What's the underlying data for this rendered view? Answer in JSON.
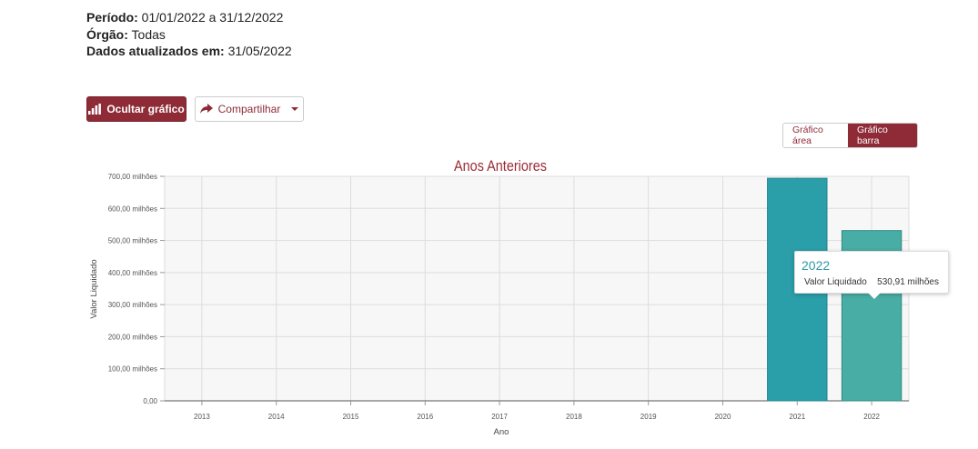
{
  "header": {
    "periodo_label": "Período:",
    "periodo_value": "01/01/2022 a 31/12/2022",
    "orgao_label": "Órgão:",
    "orgao_value": "Todas",
    "dados_label": "Dados atualizados em:",
    "dados_value": "31/05/2022"
  },
  "toolbar": {
    "hide_chart_label": "Ocultar gráfico",
    "share_label": "Compartilhar"
  },
  "chart_toggle": {
    "area_label": "Gráfico área",
    "bar_label": "Gráfico barra",
    "active": "bar"
  },
  "tooltip": {
    "title": "2022",
    "label": "Valor Liquidado",
    "value": "530,91 milhões"
  },
  "colors": {
    "accent": "#8e2b37",
    "bar_2021": "#2b9fa9",
    "bar_2022": "#48ada4",
    "title": "#9b2c35"
  },
  "chart_data": {
    "type": "bar",
    "title": "Anos Anteriores",
    "xlabel": "Ano",
    "ylabel": "Valor Liquidado",
    "categories": [
      "2013",
      "2014",
      "2015",
      "2016",
      "2017",
      "2018",
      "2019",
      "2020",
      "2021",
      "2022"
    ],
    "series": [
      {
        "values": [
          0,
          0,
          0,
          0,
          0,
          0,
          0,
          0,
          694,
          530.91
        ]
      }
    ],
    "ylim": [
      0,
      700
    ],
    "yticks": [
      0,
      100,
      200,
      300,
      400,
      500,
      600,
      700
    ],
    "ytick_labels": [
      "0,00",
      "100,00 milhões",
      "200,00 milhões",
      "300,00 milhões",
      "400,00 milhões",
      "500,00 milhões",
      "600,00 milhões",
      "700,00 milhões"
    ],
    "grid": true,
    "legend": "none"
  }
}
